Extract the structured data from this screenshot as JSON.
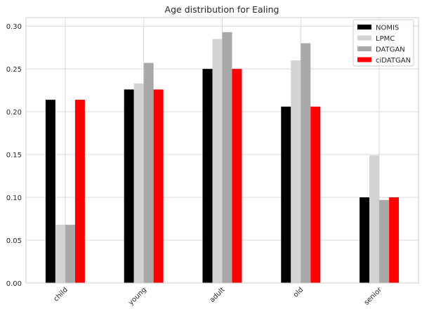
{
  "colors": {
    "background": "#ffffff",
    "plot_border": "#cccccc",
    "grid": "#d9d9d9",
    "text": "#262626"
  },
  "chart_data": {
    "type": "bar",
    "title": "Age distribution for Ealing",
    "xlabel": "",
    "ylabel": "",
    "categories": [
      "child",
      "young",
      "adult",
      "old",
      "senior"
    ],
    "series": [
      {
        "name": "NOMIS",
        "color": "#000000",
        "values": [
          0.214,
          0.226,
          0.25,
          0.206,
          0.1
        ]
      },
      {
        "name": "LPMC",
        "color": "#d3d3d3",
        "values": [
          0.068,
          0.233,
          0.285,
          0.26,
          0.149
        ]
      },
      {
        "name": "DATGAN",
        "color": "#a9a9a9",
        "values": [
          0.068,
          0.257,
          0.293,
          0.28,
          0.097
        ]
      },
      {
        "name": "ciDATGAN",
        "color": "#ff0000",
        "values": [
          0.214,
          0.226,
          0.25,
          0.206,
          0.1
        ]
      }
    ],
    "ylim": [
      0,
      0.31
    ],
    "yticks": [
      "0.00",
      "0.05",
      "0.10",
      "0.15",
      "0.20",
      "0.25",
      "0.30"
    ],
    "grid": true,
    "legend_position": "top-right",
    "xtick_rotation": "45 degrees"
  }
}
